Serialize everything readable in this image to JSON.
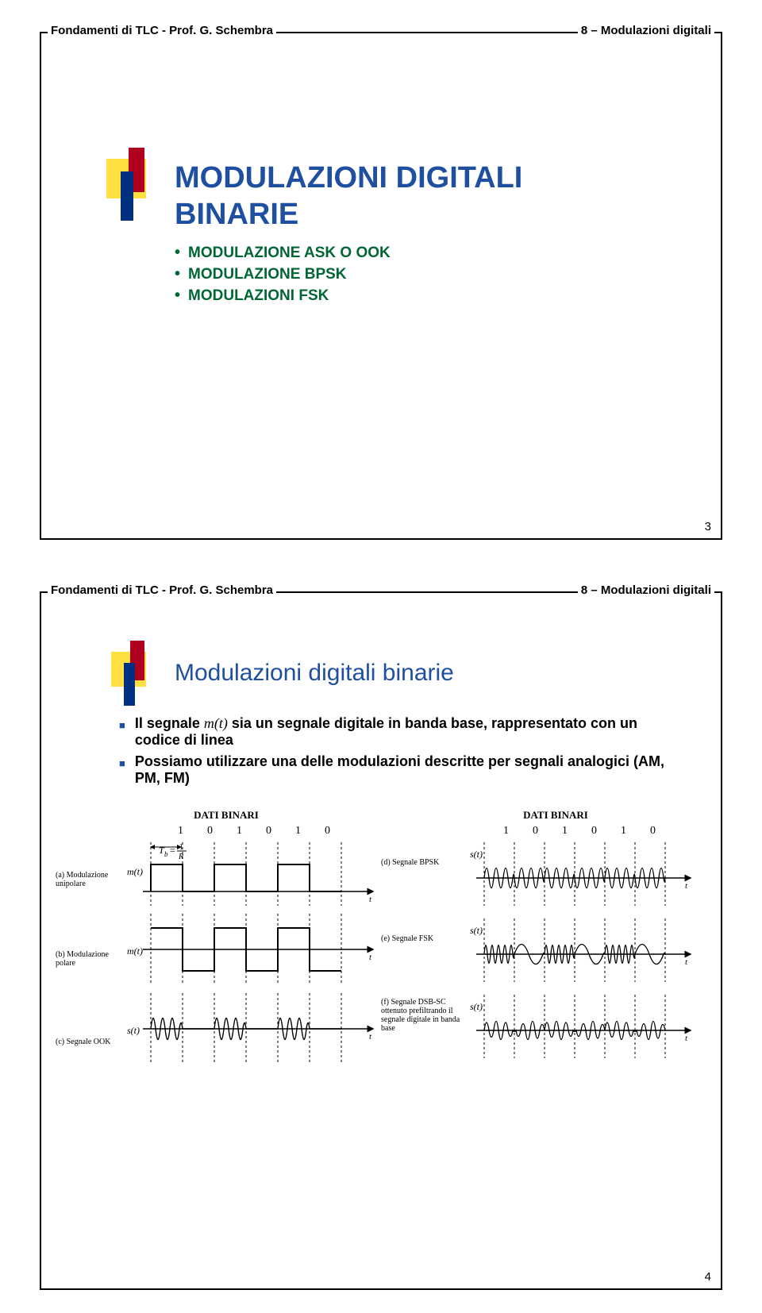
{
  "header": {
    "left": "Fondamenti di TLC - Prof. G. Schembra",
    "right": "8 – Modulazioni digitali"
  },
  "slide1": {
    "title_line1": "MODULAZIONI DIGITALI",
    "title_line2": "BINARIE",
    "title_color": "#1e4fa0",
    "items": [
      "MODULAZIONE ASK O OOK",
      "MODULAZIONE BPSK",
      "MODULAZIONI FSK"
    ],
    "item_color": "#006633",
    "page_number": "3"
  },
  "slide2": {
    "title": "Modulazioni digitali binarie",
    "title_color": "#1e4fa0",
    "bullets": [
      {
        "pre": "Il segnale ",
        "it": "m(t)",
        "post": " sia un segnale digitale in banda base, rappresentato con un codice di linea"
      },
      {
        "pre": "Possiamo utilizzare una delle modulazioni descritte per segnali analogici (AM, PM, FM)",
        "it": "",
        "post": ""
      }
    ],
    "bullet_marker_color": "#1e4fa0",
    "page_number": "4",
    "diagram": {
      "dati_binari": "DATI BINARI",
      "binary_seq": [
        "1",
        "0",
        "1",
        "0",
        "1",
        "0"
      ],
      "tb": "T_b = 1/R",
      "left_labels": {
        "a": "(a) Modulazione unipolare",
        "b": "(b) Modulazione polare",
        "c": "(c) Segnale OOK"
      },
      "left_signals": [
        "m(t)",
        "m(t)",
        "s(t)"
      ],
      "right_labels": {
        "d": "(d) Segnale BPSK",
        "e": "(e) Segnale FSK",
        "f": "(f) Segnale DSB-SC ottenuto prefiltrando il segnale digitale in banda base"
      },
      "right_signals": [
        "s(t)",
        "s(t)",
        "s(t)"
      ],
      "axis_t": "t",
      "colors": {
        "stroke": "#000000",
        "bg": "#ffffff"
      }
    }
  }
}
